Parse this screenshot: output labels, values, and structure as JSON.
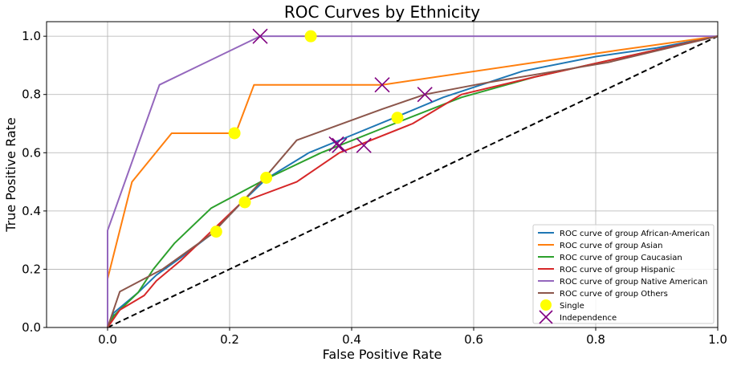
{
  "chart_data": {
    "type": "line",
    "title": "ROC Curves by Ethnicity",
    "xlabel": "False Positive Rate",
    "ylabel": "True Positive Rate",
    "xlim": [
      -0.1,
      1.0
    ],
    "ylim": [
      0.0,
      1.05
    ],
    "xticks": [
      0.0,
      0.2,
      0.4,
      0.6,
      0.8,
      1.0
    ],
    "yticks": [
      0.0,
      0.2,
      0.4,
      0.6,
      0.8,
      1.0
    ],
    "xtick_labels": [
      "0.0",
      "0.2",
      "0.4",
      "0.6",
      "0.8",
      "1.0"
    ],
    "ytick_labels": [
      "0.0",
      "0.2",
      "0.4",
      "0.6",
      "0.8",
      "1.0"
    ],
    "grid": true,
    "legend_position": "bottom-right",
    "series": [
      {
        "name": "ROC curve of group African-American",
        "color": "#1f77b4",
        "x": [
          0.0,
          0.01,
          0.05,
          0.08,
          0.12,
          0.17,
          0.22,
          0.26,
          0.33,
          0.4,
          0.47,
          0.55,
          0.68,
          0.8,
          0.9,
          1.0
        ],
        "y": [
          0.0,
          0.05,
          0.12,
          0.18,
          0.24,
          0.32,
          0.43,
          0.51,
          0.6,
          0.66,
          0.72,
          0.79,
          0.88,
          0.93,
          0.96,
          1.0
        ]
      },
      {
        "name": "ROC curve of group Asian",
        "color": "#ff7f0e",
        "x": [
          0.0,
          0.0,
          0.04,
          0.105,
          0.21,
          0.24,
          0.45,
          0.83,
          1.0
        ],
        "y": [
          0.0,
          0.167,
          0.5,
          0.667,
          0.667,
          0.833,
          0.833,
          0.95,
          1.0
        ]
      },
      {
        "name": "ROC curve of group Caucasian",
        "color": "#2ca02c",
        "x": [
          0.0,
          0.01,
          0.05,
          0.075,
          0.11,
          0.17,
          0.26,
          0.35,
          0.47,
          0.58,
          0.7,
          0.85,
          1.0
        ],
        "y": [
          0.0,
          0.04,
          0.12,
          0.2,
          0.29,
          0.41,
          0.51,
          0.6,
          0.7,
          0.79,
          0.86,
          0.93,
          1.0
        ]
      },
      {
        "name": "ROC curve of group Hispanic",
        "color": "#d62728",
        "x": [
          0.0,
          0.02,
          0.06,
          0.08,
          0.12,
          0.18,
          0.22,
          0.31,
          0.38,
          0.5,
          0.58,
          0.7,
          0.85,
          1.0
        ],
        "y": [
          0.0,
          0.06,
          0.11,
          0.16,
          0.23,
          0.35,
          0.43,
          0.5,
          0.6,
          0.7,
          0.8,
          0.86,
          0.93,
          1.0
        ]
      },
      {
        "name": "ROC curve of group Native American",
        "color": "#9467bd",
        "x": [
          0.0,
          0.0,
          0.085,
          0.25,
          1.0
        ],
        "y": [
          0.0,
          0.333,
          0.833,
          1.0,
          1.0
        ]
      },
      {
        "name": "ROC curve of group Others",
        "color": "#8c564b",
        "x": [
          0.0,
          0.02,
          0.09,
          0.17,
          0.22,
          0.26,
          0.31,
          0.45,
          0.52,
          0.62,
          0.82,
          1.0
        ],
        "y": [
          0.0,
          0.123,
          0.2,
          0.32,
          0.43,
          0.52,
          0.643,
          0.75,
          0.8,
          0.84,
          0.91,
          1.0
        ]
      }
    ],
    "diagonal": {
      "x": [
        0.0,
        1.0
      ],
      "y": [
        0.0,
        1.0
      ],
      "color": "#000000",
      "style": "dashed"
    },
    "markers": [
      {
        "name": "Single",
        "shape": "circle",
        "color": "#ffff00",
        "points": [
          [
            0.333,
            1.0
          ],
          [
            0.208,
            0.667
          ],
          [
            0.178,
            0.329
          ],
          [
            0.225,
            0.43
          ],
          [
            0.26,
            0.514
          ],
          [
            0.475,
            0.72
          ]
        ]
      },
      {
        "name": "Independence",
        "shape": "x",
        "color": "#800080",
        "points": [
          [
            0.25,
            1.0
          ],
          [
            0.45,
            0.833
          ],
          [
            0.52,
            0.8
          ],
          [
            0.375,
            0.63
          ],
          [
            0.38,
            0.625
          ],
          [
            0.42,
            0.625
          ]
        ]
      }
    ]
  }
}
